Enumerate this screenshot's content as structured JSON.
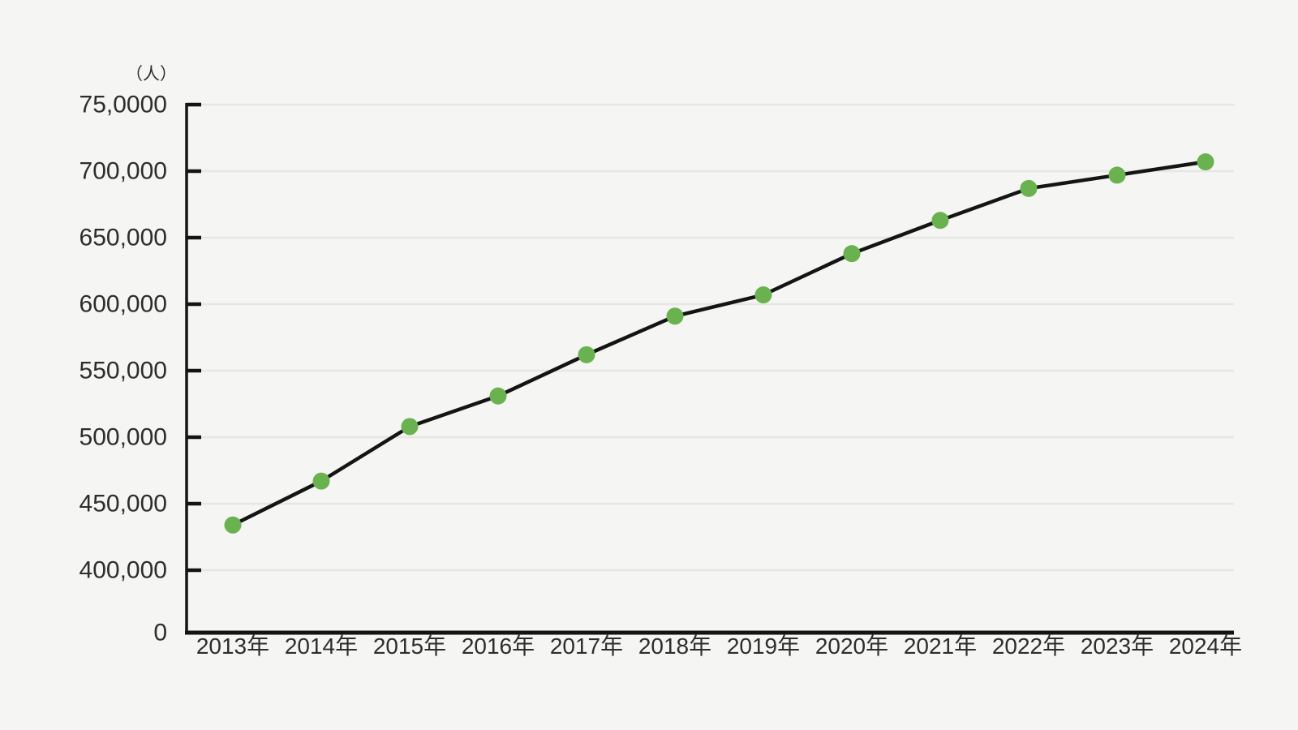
{
  "chart_data": {
    "type": "line",
    "title": "",
    "unit_label": "（人）",
    "categories": [
      "2013年",
      "2014年",
      "2015年",
      "2016年",
      "2017年",
      "2018年",
      "2019年",
      "2020年",
      "2021年",
      "2022年",
      "2023年",
      "2024年"
    ],
    "series": [
      {
        "name": "",
        "values": [
          434000,
          467000,
          508000,
          531000,
          562000,
          591000,
          607000,
          638000,
          663000,
          687000,
          697000,
          707000
        ]
      }
    ],
    "x_axis": {
      "tick_labels": [
        "2013年",
        "2014年",
        "2015年",
        "2016年",
        "2017年",
        "2018年",
        "2019年",
        "2020年",
        "2021年",
        "2022年",
        "2023年",
        "2024年"
      ]
    },
    "y_axis": {
      "tick_labels": [
        "75,0000",
        "700,000",
        "650,000",
        "600,000",
        "550,000",
        "500,000",
        "450,000",
        "400,000",
        "0"
      ],
      "tick_values": [
        750000,
        700000,
        650000,
        600000,
        550000,
        500000,
        450000,
        400000,
        0
      ],
      "broken_axis": true
    },
    "xlabel": "",
    "ylabel": "（人）",
    "grid": "horizontal",
    "legend": "none",
    "colors": {
      "background": "#f5f5f3",
      "grid": "#e6e6e4",
      "axis": "#141414",
      "line": "#141414",
      "marker": "#6ab250",
      "text": "#2d2d2d"
    }
  }
}
